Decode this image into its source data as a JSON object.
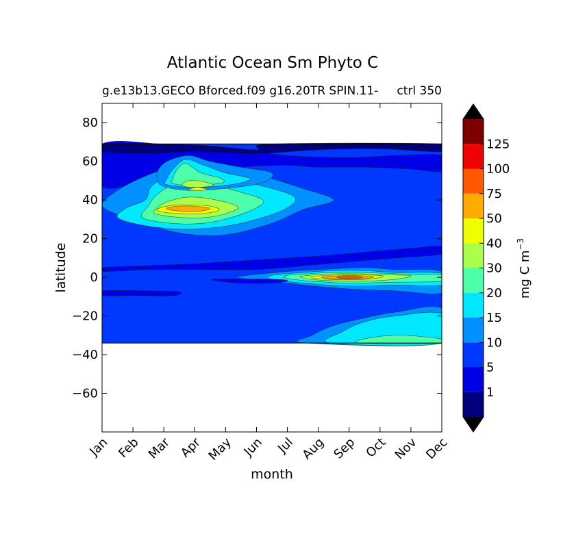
{
  "chart_data": {
    "type": "contourf",
    "title": "Atlantic Ocean Sm Phyto C",
    "subtitle_left": "g.e13b13.GECO Bforced.f09 g16.20TR SPIN.11-",
    "subtitle_right": "ctrl 350",
    "xlabel": "month",
    "ylabel": "latitude",
    "x_categories": [
      "Jan",
      "Feb",
      "Mar",
      "Apr",
      "May",
      "Jun",
      "Jul",
      "Aug",
      "Sep",
      "Oct",
      "Nov",
      "Dec"
    ],
    "xlim": [
      0,
      11
    ],
    "ylim": [
      -80,
      90
    ],
    "yticks": [
      80,
      60,
      40,
      20,
      0,
      -20,
      -40,
      -60
    ],
    "data_lat_range": [
      -34,
      69
    ],
    "colorbar": {
      "label": "mg C m",
      "label_superscript": "−3",
      "levels": [
        0,
        1,
        5,
        10,
        15,
        20,
        30,
        40,
        50,
        75,
        100,
        125,
        150
      ],
      "tick_labels": [
        "1",
        "5",
        "10",
        "15",
        "20",
        "30",
        "40",
        "50",
        "75",
        "100",
        "125"
      ],
      "colors": [
        "#00007f",
        "#0000e6",
        "#0038ff",
        "#0090ff",
        "#00e8ff",
        "#4dffaa",
        "#aaff4d",
        "#eeff00",
        "#ffab00",
        "#ff5900",
        "#ed0400",
        "#7f0000"
      ],
      "under_color": "#000000",
      "over_color": "#000000"
    },
    "regions": [
      {
        "name": "base",
        "level_index": 2
      },
      {
        "name": "north-band",
        "level_index": 1
      },
      {
        "name": "north-edge",
        "level_index": 0
      },
      {
        "name": "mid-north-low",
        "level_index": 1
      },
      {
        "name": "bloom-north-10",
        "level_index": 3
      },
      {
        "name": "bloom-north-15",
        "level_index": 4
      },
      {
        "name": "bloom-north-20",
        "level_index": 5
      },
      {
        "name": "bloom-north-30",
        "level_index": 6
      },
      {
        "name": "bloom-north-40",
        "level_index": 7
      },
      {
        "name": "bloom-north-50",
        "level_index": 8
      },
      {
        "name": "subpolar-10",
        "level_index": 3
      },
      {
        "name": "subpolar-15",
        "level_index": 4
      },
      {
        "name": "subpolar-20",
        "level_index": 5
      },
      {
        "name": "subpolar-30",
        "level_index": 6
      },
      {
        "name": "subpolar-40",
        "level_index": 7
      },
      {
        "name": "equator-10",
        "level_index": 3
      },
      {
        "name": "equator-15",
        "level_index": 4
      },
      {
        "name": "equator-20",
        "level_index": 5
      },
      {
        "name": "equator-30",
        "level_index": 6
      },
      {
        "name": "equator-40",
        "level_index": 7
      },
      {
        "name": "equator-50",
        "level_index": 8
      },
      {
        "name": "equator-75",
        "level_index": 9
      },
      {
        "name": "south-10",
        "level_index": 3
      },
      {
        "name": "south-15",
        "level_index": 4
      },
      {
        "name": "south-20",
        "level_index": 5
      },
      {
        "name": "tropic-low",
        "level_index": 1
      },
      {
        "name": "eq-south-low",
        "level_index": 1
      }
    ]
  }
}
